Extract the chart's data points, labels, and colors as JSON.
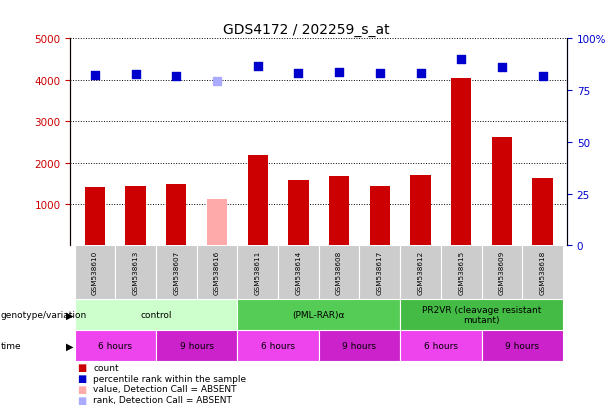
{
  "title": "GDS4172 / 202259_s_at",
  "samples": [
    "GSM538610",
    "GSM538613",
    "GSM538607",
    "GSM538616",
    "GSM538611",
    "GSM538614",
    "GSM538608",
    "GSM538617",
    "GSM538612",
    "GSM538615",
    "GSM538609",
    "GSM538618"
  ],
  "counts": [
    1420,
    1430,
    1490,
    null,
    2180,
    1590,
    1680,
    1440,
    1700,
    4050,
    2620,
    1620
  ],
  "counts_absent": [
    null,
    null,
    null,
    1130,
    null,
    null,
    null,
    null,
    null,
    null,
    null,
    null
  ],
  "percentile_ranks": [
    4120,
    4150,
    4090,
    null,
    4320,
    4160,
    4190,
    4160,
    4170,
    4490,
    4310,
    4100
  ],
  "percentile_ranks_absent": [
    null,
    null,
    null,
    3960,
    null,
    null,
    null,
    null,
    null,
    null,
    null,
    null
  ],
  "ylim_left": [
    0,
    5000
  ],
  "ylim_right": [
    0,
    100
  ],
  "yticks_left": [
    1000,
    2000,
    3000,
    4000,
    5000
  ],
  "yticks_right": [
    0,
    25,
    50,
    75,
    100
  ],
  "bar_color": "#cc0000",
  "bar_absent_color": "#ffaaaa",
  "dot_color": "#0000cc",
  "dot_absent_color": "#aaaaff",
  "genotype_groups": [
    {
      "label": "control",
      "start": 0,
      "end": 4,
      "color": "#ccffcc"
    },
    {
      "label": "(PML-RAR)α",
      "start": 4,
      "end": 8,
      "color": "#55cc55"
    },
    {
      "label": "PR2VR (cleavage resistant\nmutant)",
      "start": 8,
      "end": 12,
      "color": "#44bb44"
    }
  ],
  "time_groups": [
    {
      "label": "6 hours",
      "start": 0,
      "end": 2,
      "color": "#ee44ee"
    },
    {
      "label": "9 hours",
      "start": 2,
      "end": 4,
      "color": "#cc22cc"
    },
    {
      "label": "6 hours",
      "start": 4,
      "end": 6,
      "color": "#ee44ee"
    },
    {
      "label": "9 hours",
      "start": 6,
      "end": 8,
      "color": "#cc22cc"
    },
    {
      "label": "6 hours",
      "start": 8,
      "end": 10,
      "color": "#ee44ee"
    },
    {
      "label": "9 hours",
      "start": 10,
      "end": 12,
      "color": "#cc22cc"
    }
  ],
  "legend_items": [
    {
      "label": "count",
      "color": "#cc0000"
    },
    {
      "label": "percentile rank within the sample",
      "color": "#0000cc"
    },
    {
      "label": "value, Detection Call = ABSENT",
      "color": "#ffaaaa"
    },
    {
      "label": "rank, Detection Call = ABSENT",
      "color": "#aaaaff"
    }
  ],
  "left_axis_color": "#cc0000",
  "right_axis_color": "#0000cc",
  "bar_width": 0.5,
  "dot_size": 35,
  "grid_color": "black",
  "bg_color": "#ffffff",
  "sample_area_color": "#cccccc"
}
